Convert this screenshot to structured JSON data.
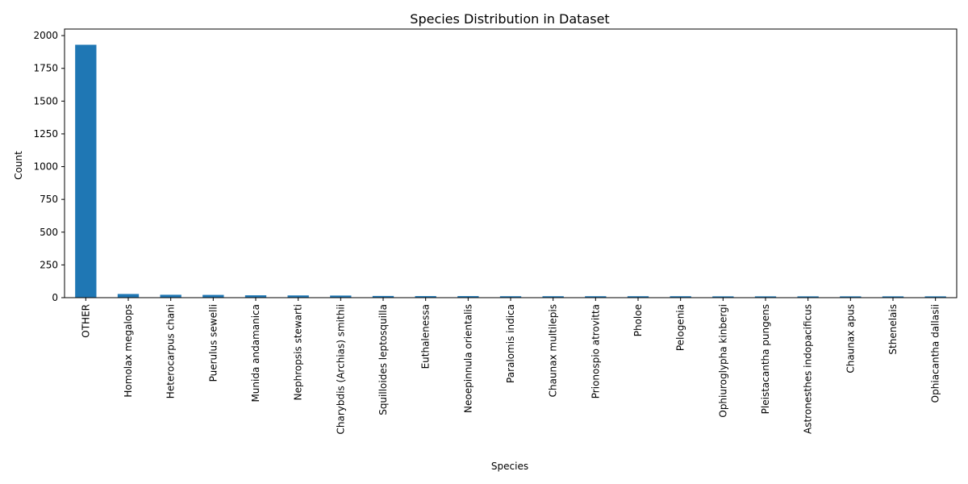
{
  "chart_data": {
    "type": "bar",
    "title": "Species Distribution in Dataset",
    "xlabel": "Species",
    "ylabel": "Count",
    "categories": [
      "OTHER",
      "Homolax megalops",
      "Heterocarpus chani",
      "Puerulus sewelli",
      "Munida andamanica",
      "Nephropsis stewarti",
      "Charybdis (Archias) smithii",
      "Squilloides leptosquilla",
      "Euthalenessa",
      "Neoepinnula orientalis",
      "Paralomis indica",
      "Chaunax multilepis",
      "Prionospio atrovitta",
      "Pholoe",
      "Pelogenia",
      "Ophiuroglypha kinbergi",
      "Pleistacantha pungens",
      "Astronesthes indopacificus",
      "Chaunax apus",
      "Sthenelais",
      "Ophiacantha dallasii"
    ],
    "values": [
      1930,
      28,
      22,
      21,
      18,
      17,
      16,
      13,
      12,
      12,
      11,
      11,
      11,
      11,
      11,
      10,
      10,
      10,
      10,
      10,
      10
    ],
    "ylim": [
      0,
      2050
    ],
    "yticks": [
      0,
      250,
      500,
      750,
      1000,
      1250,
      1500,
      1750,
      2000
    ],
    "bar_color": "#1f77b4",
    "grid": false,
    "legend": "none"
  }
}
